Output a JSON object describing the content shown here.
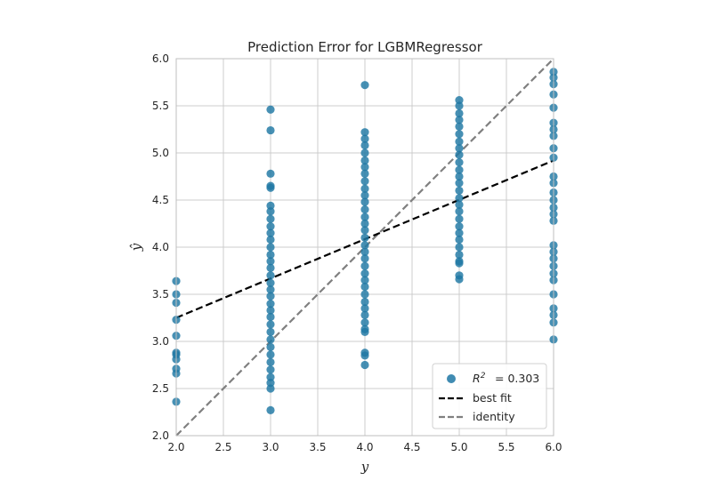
{
  "chart_data": {
    "type": "scatter",
    "title": "Prediction Error for LGBMRegressor",
    "xlabel": "y",
    "ylabel": "ŷ",
    "xlim": [
      2.0,
      6.0
    ],
    "ylim": [
      2.0,
      6.0
    ],
    "xticks": [
      "2.0",
      "2.5",
      "3.0",
      "3.5",
      "4.0",
      "4.5",
      "5.0",
      "5.5",
      "6.0"
    ],
    "yticks": [
      "2.0",
      "2.5",
      "3.0",
      "3.5",
      "4.0",
      "4.5",
      "5.0",
      "5.5",
      "6.0"
    ],
    "grid": true,
    "legend_position": "bottom-right",
    "colors": {
      "points": "#1f77a4",
      "best_fit": "#000000",
      "identity": "#808080",
      "grid": "#cccccc",
      "frame": "#bfbfbf"
    },
    "series": [
      {
        "name": "R² = 0.303",
        "legend_label": "= 0.303",
        "type": "scatter",
        "groups": [
          {
            "x": 2,
            "y": [
              3.64,
              3.5,
              3.41,
              3.23,
              3.06,
              2.88,
              2.86,
              2.81,
              2.71,
              2.66,
              2.36
            ]
          },
          {
            "x": 3,
            "y": [
              5.46,
              5.24,
              4.78,
              4.65,
              4.63,
              4.44,
              4.38,
              4.3,
              4.22,
              4.15,
              4.08,
              4.0,
              3.92,
              3.85,
              3.78,
              3.7,
              3.62,
              3.55,
              3.48,
              3.4,
              3.33,
              3.26,
              3.18,
              3.1,
              3.02,
              2.94,
              2.86,
              2.78,
              2.7,
              2.62,
              2.56,
              2.5,
              2.27
            ]
          },
          {
            "x": 4,
            "y": [
              5.72,
              5.22,
              5.15,
              5.08,
              5.0,
              4.92,
              4.85,
              4.78,
              4.7,
              4.62,
              4.55,
              4.48,
              4.4,
              4.32,
              4.25,
              4.18,
              4.1,
              4.02,
              3.95,
              3.88,
              3.8,
              3.72,
              3.65,
              3.58,
              3.5,
              3.42,
              3.35,
              3.28,
              3.2,
              3.13,
              3.1,
              2.88,
              2.85,
              2.75
            ]
          },
          {
            "x": 5,
            "y": [
              5.56,
              5.5,
              5.42,
              5.35,
              5.28,
              5.2,
              5.12,
              5.05,
              4.98,
              4.9,
              4.82,
              4.75,
              4.68,
              4.6,
              4.52,
              4.45,
              4.38,
              4.3,
              4.22,
              4.15,
              4.08,
              4.0,
              3.92,
              3.85,
              3.83,
              3.7,
              3.66
            ]
          },
          {
            "x": 6,
            "y": [
              5.86,
              5.8,
              5.73,
              5.62,
              5.48,
              5.32,
              5.25,
              5.18,
              5.05,
              4.95,
              4.75,
              4.68,
              4.58,
              4.5,
              4.42,
              4.35,
              4.28,
              4.02,
              3.95,
              3.88,
              3.8,
              3.72,
              3.65,
              3.5,
              3.35,
              3.28,
              3.2,
              3.02
            ]
          }
        ]
      },
      {
        "name": "best fit",
        "type": "line",
        "style": "dashed",
        "x": [
          2.0,
          6.0
        ],
        "y": [
          3.25,
          4.92
        ]
      },
      {
        "name": "identity",
        "type": "line",
        "style": "dashed",
        "x": [
          2.0,
          6.0
        ],
        "y": [
          2.0,
          6.0
        ]
      }
    ]
  }
}
